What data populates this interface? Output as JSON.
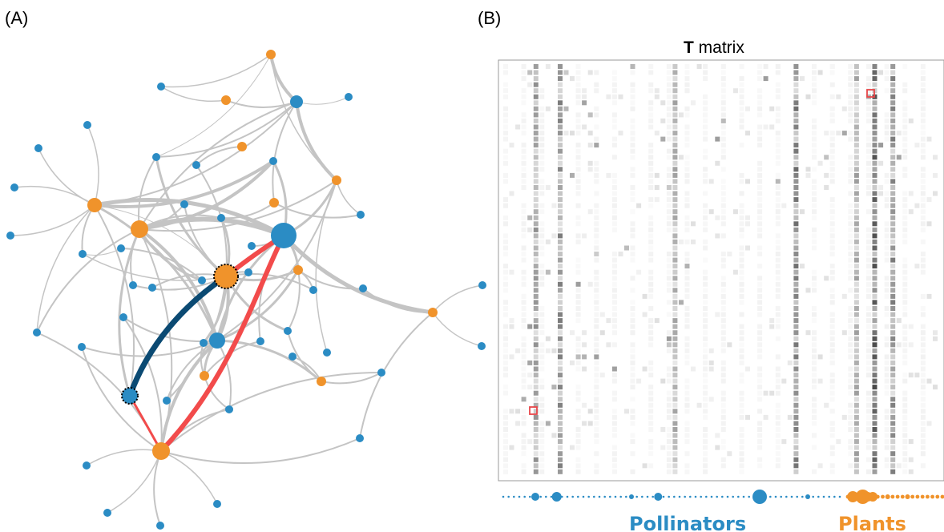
{
  "panels": {
    "a_label": "(A)",
    "b_label": "(B)"
  },
  "matrix": {
    "title_bold": "T",
    "title_rest": " matrix"
  },
  "legend": {
    "pollinators": "Pollinators",
    "plants": "Plants"
  },
  "colors": {
    "pollinator": "#2b8cc4",
    "plant": "#f0932b",
    "edge": "#c4c4c4",
    "highlight_path": "#f24b4b",
    "dark_path": "#0b4a73",
    "marker": "#e8474a",
    "frame": "#999999"
  },
  "network": {
    "nodes": [
      {
        "id": "pl_top",
        "type": "plant",
        "size": "small"
      },
      {
        "id": "pl_hub_left",
        "type": "plant",
        "size": "medium"
      },
      {
        "id": "pl_big",
        "type": "plant",
        "size": "large"
      },
      {
        "id": "pl_center",
        "type": "plant",
        "size": "large",
        "highlighted": true
      },
      {
        "id": "pl_bottom",
        "type": "plant",
        "size": "medium"
      },
      {
        "id": "pl_right",
        "type": "plant",
        "size": "small"
      },
      {
        "id": "po_hub",
        "type": "pollinator",
        "size": "large"
      },
      {
        "id": "po_mid",
        "type": "pollinator",
        "size": "medium"
      },
      {
        "id": "po_left",
        "type": "pollinator",
        "size": "medium",
        "highlighted": true
      }
    ],
    "highlight_path": [
      "po_left",
      "pl_bottom",
      "po_hub",
      "pl_center"
    ],
    "dark_path": [
      "po_left",
      "pl_center"
    ]
  },
  "strip": {
    "pollinator_count": 64,
    "plant_count": 20
  }
}
